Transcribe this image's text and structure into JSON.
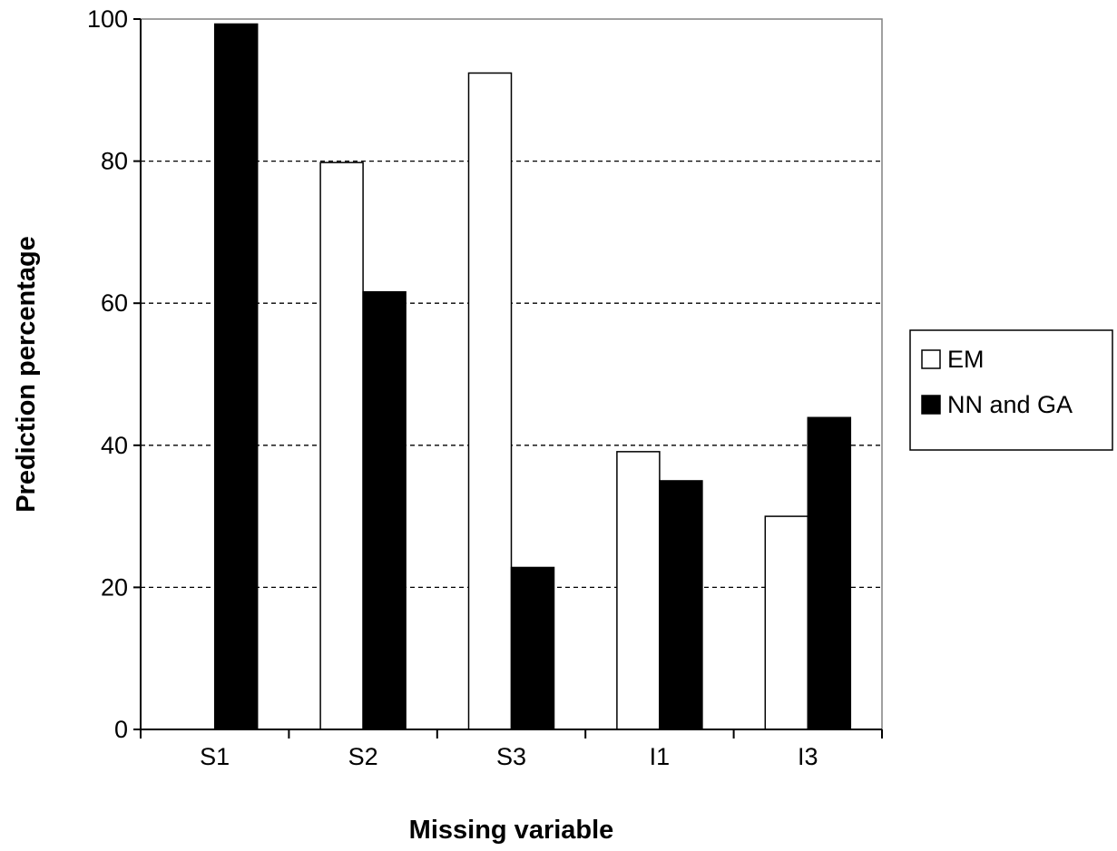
{
  "chart_data": {
    "type": "bar",
    "title": "",
    "xlabel": "Missing variable",
    "ylabel": "Prediction percentage",
    "categories": [
      "S1",
      "S2",
      "S3",
      "I1",
      "I3"
    ],
    "series": [
      {
        "name": "EM",
        "values": [
          0,
          79.8,
          92.4,
          39.1,
          30.0
        ],
        "color": "#ffffff"
      },
      {
        "name": "NN and GA",
        "values": [
          99.3,
          61.6,
          22.8,
          35.0,
          43.9
        ],
        "color": "#000000"
      }
    ],
    "ylim": [
      0,
      100
    ],
    "yticks": [
      0,
      20,
      40,
      60,
      80,
      100
    ],
    "grid": "horizontal dashed",
    "legend_position": "right"
  }
}
